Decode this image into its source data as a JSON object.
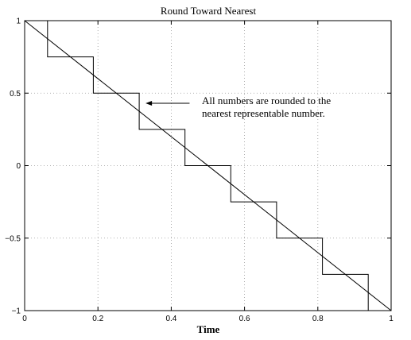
{
  "chart_data": {
    "type": "line",
    "title": "Round Toward Nearest",
    "xlabel": "Time",
    "ylabel": "",
    "xlim": [
      0,
      1
    ],
    "ylim": [
      -1,
      1
    ],
    "grid": true,
    "x_ticks": [
      {
        "value": 0,
        "label": "0"
      },
      {
        "value": 0.2,
        "label": "0.2"
      },
      {
        "value": 0.4,
        "label": "0.4"
      },
      {
        "value": 0.6,
        "label": "0.6"
      },
      {
        "value": 0.8,
        "label": "0.8"
      },
      {
        "value": 1,
        "label": "1"
      }
    ],
    "y_ticks": [
      {
        "value": 1,
        "label": "1"
      },
      {
        "value": 0.5,
        "label": "0.5"
      },
      {
        "value": 0,
        "label": "0"
      },
      {
        "value": -0.5,
        "label": "−0.5"
      },
      {
        "value": -1,
        "label": "−1"
      }
    ],
    "series": [
      {
        "type": "line",
        "color": "#000000",
        "points": [
          [
            0,
            1
          ],
          [
            1,
            -1
          ]
        ]
      },
      {
        "type": "step",
        "color": "#000000",
        "points": [
          [
            0.0625,
            1
          ],
          [
            0.0625,
            0.75
          ],
          [
            0.1875,
            0.75
          ],
          [
            0.1875,
            0.5
          ],
          [
            0.3125,
            0.5
          ],
          [
            0.3125,
            0.25
          ],
          [
            0.4375,
            0.25
          ],
          [
            0.4375,
            0
          ],
          [
            0.5625,
            0
          ],
          [
            0.5625,
            -0.25
          ],
          [
            0.6875,
            -0.25
          ],
          [
            0.6875,
            -0.5
          ],
          [
            0.8125,
            -0.5
          ],
          [
            0.8125,
            -0.75
          ],
          [
            0.9375,
            -0.75
          ],
          [
            0.9375,
            -1
          ]
        ]
      }
    ],
    "annotation": {
      "lines": [
        "All numbers are rounded to the",
        "nearest representable number."
      ],
      "arrow_to": [
        0.33,
        0.43
      ],
      "arrow_from": [
        0.45,
        0.43
      ]
    }
  }
}
